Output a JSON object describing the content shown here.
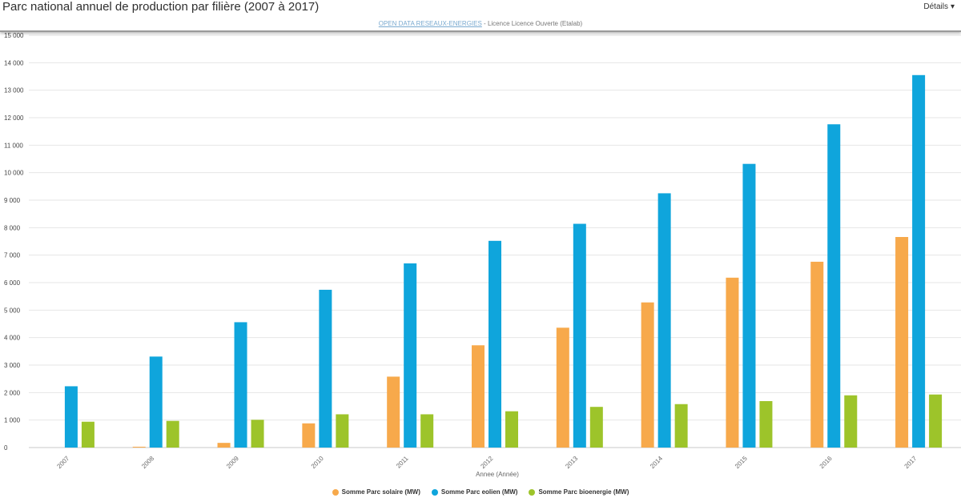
{
  "header": {
    "title": "Parc national annuel de production par filière (2007 à 2017)",
    "details_label": "Détails"
  },
  "source": {
    "link_text": "OPEN DATA RESEAUX-ENERGIES",
    "suffix": " - Licence Licence Ouverte (Etalab)"
  },
  "chart_data": {
    "type": "bar",
    "title": "Parc national annuel de production par filière (2007 à 2017)",
    "xlabel": "Annee (Année)",
    "ylabel": "",
    "ylim": [
      0,
      15000
    ],
    "yticks": [
      0,
      1000,
      2000,
      3000,
      4000,
      5000,
      6000,
      7000,
      8000,
      9000,
      10000,
      11000,
      12000,
      13000,
      14000,
      15000
    ],
    "ytick_labels": [
      "0",
      "1 000",
      "2 000",
      "3 000",
      "4 000",
      "5 000",
      "6 000",
      "7 000",
      "8 000",
      "9 000",
      "10 000",
      "11 000",
      "12 000",
      "13 000",
      "14 000",
      "15 000"
    ],
    "categories": [
      "2007",
      "2008",
      "2009",
      "2010",
      "2011",
      "2012",
      "2013",
      "2014",
      "2015",
      "2016",
      "2017"
    ],
    "grid": true,
    "legend_position": "bottom-center",
    "series": [
      {
        "name": "Somme Parc solaire (MW)",
        "color": "#f7a94b",
        "values": [
          0,
          30,
          170,
          880,
          2580,
          3720,
          4360,
          5280,
          6180,
          6760,
          7660
        ]
      },
      {
        "name": "Somme Parc eolien (MW)",
        "color": "#0fa5dc",
        "values": [
          2230,
          3310,
          4560,
          5740,
          6700,
          7520,
          8140,
          9250,
          10320,
          11760,
          13550
        ]
      },
      {
        "name": "Somme Parc bioenergie (MW)",
        "color": "#9dc42a",
        "values": [
          940,
          970,
          1010,
          1210,
          1210,
          1320,
          1480,
          1580,
          1690,
          1900,
          1930
        ]
      }
    ]
  }
}
